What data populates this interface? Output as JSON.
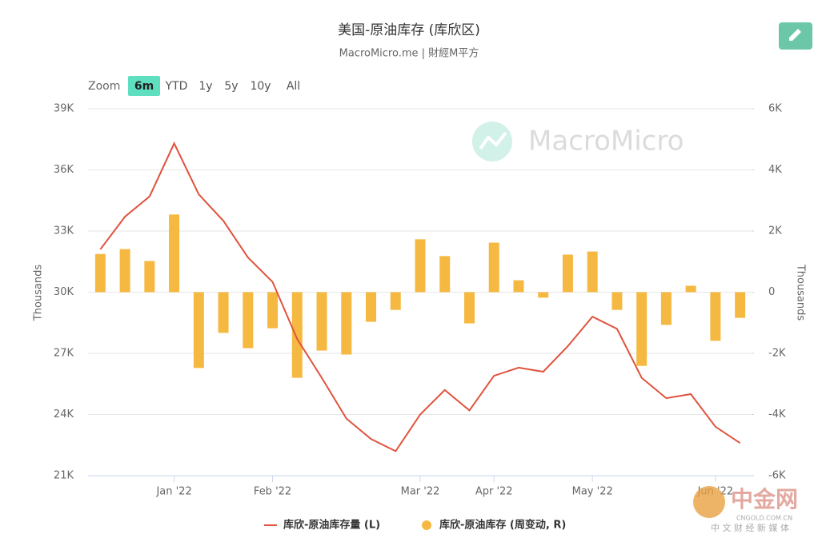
{
  "chart_data": {
    "type": "combo",
    "title": "美国-原油库存 (库欣区)",
    "subtitle": "MacroMicro.me | 財經M平方",
    "categories": [
      null,
      null,
      null,
      "Jan '22",
      null,
      null,
      null,
      "Feb '22",
      null,
      null,
      null,
      null,
      null,
      "Mar '22",
      null,
      null,
      "Apr '22",
      null,
      null,
      null,
      "May '22",
      null,
      null,
      null,
      null,
      "Jun '22",
      null
    ],
    "series": [
      {
        "name": "库欣-原油库存量 (L)",
        "type": "line",
        "color": "#e0533d",
        "axis": "y",
        "values": [
          32100,
          33700,
          34700,
          37300,
          34800,
          33500,
          31700,
          30500,
          27700,
          25800,
          23800,
          22800,
          22200,
          24000,
          25200,
          24200,
          25900,
          26300,
          26100,
          27350,
          28800,
          28200,
          25800,
          24800,
          25000,
          23400,
          22600
        ]
      },
      {
        "name": "库欣-原油库存 (周变动, R)",
        "type": "bar",
        "color": "#f5b942",
        "axis": "y2",
        "values": [
          1250,
          1410,
          1020,
          2540,
          -2480,
          -1330,
          -1830,
          -1180,
          -2800,
          -1910,
          -2040,
          -970,
          -580,
          1730,
          1180,
          -1020,
          1620,
          390,
          -180,
          1230,
          1330,
          -580,
          -2410,
          -1070,
          210,
          -1590,
          -840
        ]
      }
    ],
    "ylabel": "Thousands",
    "y2label": "Thousands",
    "ylim": [
      21000,
      39000
    ],
    "yticks": [
      {
        "value": 21000,
        "label": "21K"
      },
      {
        "value": 24000,
        "label": "24K"
      },
      {
        "value": 27000,
        "label": "27K"
      },
      {
        "value": 30000,
        "label": "30K"
      },
      {
        "value": 33000,
        "label": "33K"
      },
      {
        "value": 36000,
        "label": "36K"
      },
      {
        "value": 39000,
        "label": "39K"
      }
    ],
    "y2lim": [
      -6000,
      6000
    ],
    "y2ticks": [
      {
        "value": -6000,
        "label": "-6K"
      },
      {
        "value": -4000,
        "label": "-4K"
      },
      {
        "value": -2000,
        "label": "-2K"
      },
      0,
      {
        "value": 2000,
        "label": "2K"
      },
      {
        "value": 4000,
        "label": "4K"
      },
      {
        "value": 6000,
        "label": "6K"
      }
    ],
    "grid": true
  },
  "toolbar": {
    "zoom_label": "Zoom",
    "ranges": [
      "6m",
      "YTD",
      "1y",
      "5y",
      "10y",
      "All"
    ],
    "active": 0
  },
  "watermark": "MacroMicro",
  "corner_logo": {
    "name": "中金网",
    "domain": "CNGOLD.COM.CN",
    "slogan": "中 文 财 经 新 媒 体"
  }
}
